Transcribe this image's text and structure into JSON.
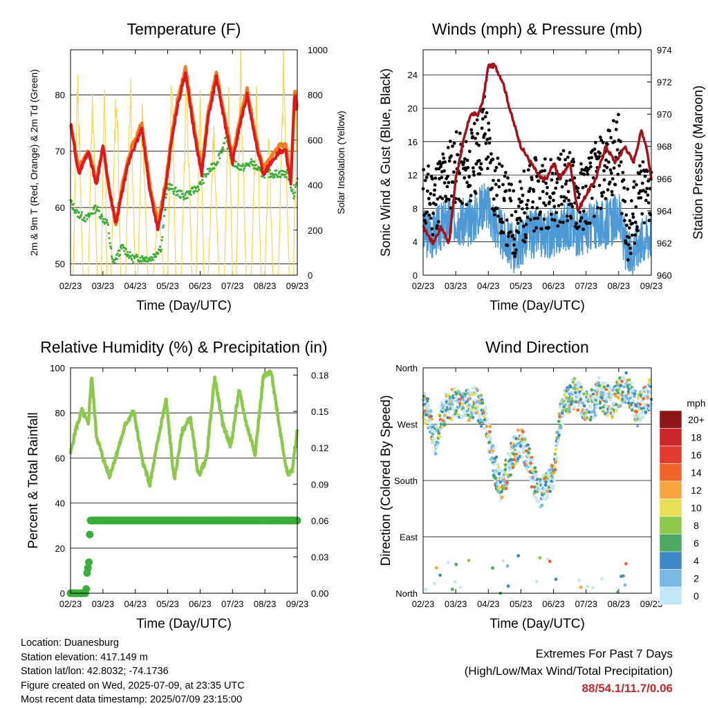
{
  "colors": {
    "temp_2m": "#e0181c",
    "temp_9m": "#f07d1e",
    "dewpoint": "#3aad3a",
    "solar": "#f7d64a",
    "gust": "#000000",
    "wind": "#4e9ad6",
    "pressure": "#a3121a",
    "rh": "#8cc84b",
    "precip": "#3aad3a"
  },
  "chart_data": [
    {
      "id": "temperature",
      "type": "line",
      "title": "Temperature (F)",
      "xlabel": "Time (Day/UTC)",
      "ylabel": "2m & 9m T (Red, Orange) & 2m Td (Green)",
      "ylabel_right": "Solar Insolation (Yellow)",
      "x_ticks": [
        "02/23",
        "03/23",
        "04/23",
        "05/23",
        "06/23",
        "07/23",
        "08/23",
        "09/23"
      ],
      "y_ticks": [
        50,
        60,
        70,
        80
      ],
      "y_ticks_right": [
        0,
        200,
        400,
        600,
        800,
        1000
      ],
      "ylim": [
        48,
        88
      ],
      "ylim_right": [
        0,
        1000
      ],
      "xlim_days": [
        0,
        7
      ],
      "series": [
        {
          "x": [
            0,
            0.25,
            0.55,
            0.8,
            1.0,
            1.2,
            1.4,
            1.6,
            1.75,
            1.9,
            2.0,
            2.2,
            2.45,
            2.7,
            2.95,
            3.1,
            3.3,
            3.55,
            3.85,
            4.05,
            4.25,
            4.5,
            4.8,
            5.0,
            5.2,
            5.45,
            5.7,
            5.95,
            6.2,
            6.45,
            6.65,
            6.8,
            6.92,
            7.0
          ],
          "y": [
            75,
            66,
            70,
            64,
            71,
            63,
            57,
            63,
            67,
            70,
            71,
            74,
            63,
            56,
            64,
            71,
            78,
            84,
            72,
            66,
            76,
            83,
            74,
            68,
            74,
            80,
            72,
            66,
            68,
            70,
            70,
            64,
            80,
            77
          ]
        },
        {
          "x": [
            0,
            0.25,
            0.55,
            0.8,
            1.0,
            1.2,
            1.4,
            1.6,
            1.75,
            1.9,
            2.0,
            2.2,
            2.45,
            2.7,
            2.95,
            3.1,
            3.3,
            3.55,
            3.85,
            4.05,
            4.25,
            4.5,
            4.8,
            5.0,
            5.2,
            5.45,
            5.7,
            5.95,
            6.2,
            6.45,
            6.65,
            6.8,
            6.92,
            7.0
          ],
          "y": [
            75,
            67,
            70,
            65,
            71,
            63,
            57,
            64,
            68,
            71,
            72,
            75,
            64,
            57,
            65,
            72,
            79,
            85,
            73,
            67,
            77,
            84,
            75,
            69,
            75,
            81,
            73,
            67,
            69,
            71,
            71,
            65,
            81,
            78
          ]
        },
        {
          "x": [
            0,
            0.2,
            0.5,
            0.8,
            1.0,
            1.15,
            1.3,
            1.6,
            1.9,
            2.2,
            2.5,
            2.8,
            3.0,
            3.2,
            3.5,
            3.8,
            4.0,
            4.2,
            4.5,
            4.8,
            5.0,
            5.3,
            5.6,
            5.9,
            6.2,
            6.5,
            6.7,
            6.9,
            7.0
          ],
          "y": [
            61,
            59,
            58,
            60,
            58,
            57,
            50,
            53,
            51,
            51,
            51,
            53,
            64,
            63,
            62,
            63,
            64,
            66,
            68,
            72,
            68,
            67,
            68,
            66,
            66,
            66,
            66,
            62,
            65
          ]
        },
        {
          "x": [
            0,
            0.08,
            0.22,
            0.38,
            0.55,
            0.68,
            0.82,
            0.95,
            1.05,
            1.12,
            1.25,
            1.42,
            1.55,
            1.7,
            1.85,
            2.0,
            2.08,
            2.22,
            2.38,
            2.55,
            2.72,
            2.88,
            3.0,
            3.12,
            3.25,
            3.42,
            3.58,
            3.75,
            3.88,
            4.0,
            4.12,
            4.25,
            4.42,
            4.58,
            4.75,
            4.88,
            5.0,
            5.12,
            5.25,
            5.42,
            5.58,
            5.75,
            5.88,
            6.0,
            6.12,
            6.25,
            6.42,
            6.58,
            6.75,
            6.88,
            7.0
          ],
          "y": [
            0,
            0,
            900,
            0,
            0,
            850,
            0,
            0,
            900,
            0,
            0,
            880,
            0,
            0,
            850,
            0,
            0,
            700,
            0,
            0,
            300,
            0,
            0,
            900,
            0,
            0,
            850,
            0,
            0,
            800,
            0,
            0,
            650,
            0,
            0,
            800,
            0,
            0,
            900,
            0,
            0,
            800,
            0,
            0,
            600,
            0,
            0,
            950,
            0,
            0,
            900
          ]
        }
      ]
    },
    {
      "id": "winds",
      "type": "scatter",
      "title": "Winds (mph) & Pressure (mb)",
      "xlabel": "Time (Day/UTC)",
      "ylabel": "Sonic Wind & Gust (Blue, Black)",
      "ylabel_right": "Station Pressure (Maroon)",
      "x_ticks": [
        "02/23",
        "03/23",
        "04/23",
        "05/23",
        "06/23",
        "07/23",
        "08/23",
        "09/23"
      ],
      "y_ticks": [
        0,
        4,
        8,
        12,
        16,
        20,
        24
      ],
      "y_ticks_right": [
        960,
        962,
        964,
        966,
        968,
        970,
        972,
        974
      ],
      "ylim": [
        0,
        27
      ],
      "ylim_right": [
        960,
        974
      ],
      "xlim_days": [
        0,
        7
      ],
      "wind_x": [
        0,
        0.3,
        0.6,
        1.0,
        1.3,
        1.6,
        1.9,
        2.1,
        2.4,
        2.8,
        3.2,
        3.6,
        4.0,
        4.4,
        4.8,
        5.2,
        5.6,
        6.0,
        6.3,
        6.6,
        7.0
      ],
      "wind_y": [
        5,
        5,
        6,
        7,
        6,
        7,
        9,
        7,
        5,
        3,
        5,
        5,
        5,
        6,
        5,
        6,
        6,
        7,
        2,
        4,
        5
      ],
      "gust_x": [
        0,
        0.3,
        0.6,
        1.0,
        1.3,
        1.6,
        1.9,
        2.1,
        2.4,
        2.8,
        3.2,
        3.6,
        4.0,
        4.4,
        4.8,
        5.2,
        5.6,
        6.0,
        6.3,
        6.6,
        7.0
      ],
      "gust_y": [
        9,
        9,
        11,
        13,
        12,
        14,
        18,
        12,
        9,
        6,
        9,
        10,
        10,
        11,
        9,
        11,
        13,
        15,
        5,
        9,
        10
      ],
      "pressure_x": [
        0,
        0.3,
        0.55,
        0.8,
        1.0,
        1.2,
        1.45,
        1.7,
        1.85,
        2.0,
        2.2,
        2.45,
        2.7,
        3.0,
        3.3,
        3.6,
        3.8,
        4.0,
        4.2,
        4.5,
        4.75,
        5.0,
        5.3,
        5.6,
        5.9,
        6.2,
        6.45,
        6.7,
        6.85,
        7.0
      ],
      "pressure_y": [
        963,
        962,
        963,
        962,
        966,
        968,
        970,
        970,
        971,
        973,
        973,
        972,
        970,
        968,
        967,
        966,
        966,
        967,
        966,
        967,
        964,
        965,
        966,
        968,
        967,
        968,
        967,
        969,
        968,
        966
      ]
    },
    {
      "id": "humidity",
      "type": "line",
      "title": "Relative Humidity (%) & Precipitation (in)",
      "xlabel": "Time (Day/UTC)",
      "ylabel": "Percent & Total Rainfall",
      "x_ticks": [
        "02/23",
        "03/23",
        "04/23",
        "05/23",
        "06/23",
        "07/23",
        "08/23",
        "09/23"
      ],
      "y_ticks": [
        0,
        20,
        40,
        60,
        80,
        100
      ],
      "y_ticks_right": [
        "0.00",
        "0.03",
        "0.06",
        "0.09",
        "0.12",
        "0.15",
        "0.18"
      ],
      "ylim": [
        0,
        100
      ],
      "ylim_right": [
        0,
        0.186
      ],
      "xlim_days": [
        0,
        7
      ],
      "rh_x": [
        0,
        0.15,
        0.35,
        0.55,
        0.65,
        0.8,
        1.0,
        1.2,
        1.45,
        1.7,
        1.95,
        2.2,
        2.45,
        2.7,
        2.95,
        3.2,
        3.45,
        3.7,
        3.95,
        4.2,
        4.45,
        4.7,
        4.95,
        5.2,
        5.45,
        5.7,
        5.95,
        6.2,
        6.45,
        6.7,
        6.85,
        7.0
      ],
      "rh_y": [
        62,
        72,
        81,
        75,
        97,
        70,
        60,
        52,
        63,
        75,
        81,
        60,
        48,
        68,
        86,
        50,
        72,
        78,
        52,
        60,
        96,
        75,
        65,
        90,
        74,
        62,
        96,
        98,
        74,
        52,
        55,
        72
      ],
      "precip_x": [
        0,
        0.1,
        0.2,
        0.3,
        0.4,
        0.48,
        0.5,
        0.52,
        0.54,
        0.56,
        0.58,
        0.6,
        1.0,
        2.0,
        3.0,
        4.0,
        5.0,
        6.0,
        7.0
      ],
      "precip_y": [
        0,
        0,
        0,
        0,
        0,
        0,
        0.015,
        0.018,
        0.021,
        0.024,
        0.03,
        0.06,
        0.06,
        0.06,
        0.06,
        0.06,
        0.06,
        0.06,
        0.06
      ]
    },
    {
      "id": "direction",
      "type": "scatter",
      "title": "Wind Direction",
      "xlabel": "Time (Day/UTC)",
      "ylabel": "Direction (Colored By Speed)",
      "x_ticks": [
        "02/23",
        "03/23",
        "04/23",
        "05/23",
        "06/23",
        "07/23",
        "08/23",
        "09/23"
      ],
      "y_ticks": [
        "North",
        "East",
        "South",
        "West",
        "North"
      ],
      "ylim": [
        0,
        360
      ],
      "xlim_days": [
        0,
        7
      ],
      "dir_x": [
        0,
        0.2,
        0.4,
        0.6,
        0.8,
        1.0,
        1.2,
        1.4,
        1.6,
        1.8,
        2.0,
        2.2,
        2.4,
        2.6,
        2.8,
        3.0,
        3.2,
        3.4,
        3.6,
        3.8,
        4.0,
        4.2,
        4.4,
        4.6,
        4.8,
        5.0,
        5.2,
        5.4,
        5.6,
        5.8,
        6.0,
        6.2,
        6.4,
        6.6,
        6.8,
        7.0
      ],
      "dir_y": [
        300,
        280,
        240,
        290,
        300,
        305,
        300,
        300,
        305,
        290,
        260,
        200,
        170,
        200,
        230,
        240,
        220,
        180,
        160,
        170,
        190,
        280,
        310,
        320,
        310,
        300,
        300,
        320,
        310,
        300,
        320,
        330,
        310,
        290,
        310,
        320
      ],
      "legend_title": "mph",
      "legend_levels": [
        "20+",
        "18",
        "16",
        "14",
        "12",
        "10",
        "8",
        "6",
        "4",
        "2",
        "0"
      ],
      "legend_colors": [
        "#8e1518",
        "#c9252a",
        "#e23b2b",
        "#f0642a",
        "#f7a43c",
        "#e8df56",
        "#8cc84b",
        "#4aa862",
        "#3e88c8",
        "#7ab8e4",
        "#c4e6f7"
      ]
    }
  ],
  "info": {
    "location": "Location: Duanesburg",
    "elevation": "Station elevation: 417.149 m",
    "latlon": "Station lat/lon: 42.8032; -74.1736",
    "created": "Figure created on Wed, 2025-07-09, at 23:35 UTC",
    "recent": "Most recent data timestamp: 2025/07/09 23:15:00"
  },
  "extremes": {
    "title": "Extremes For Past 7 Days",
    "subtitle": "(High/Low/Max Wind/Total Precipitation)",
    "values": "88/54.1/11.7/0.06"
  }
}
